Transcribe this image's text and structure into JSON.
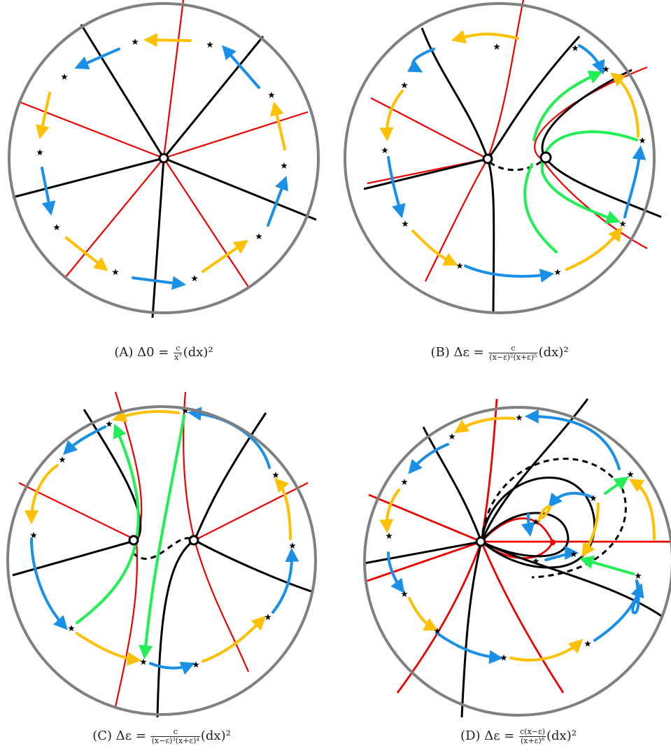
{
  "colors": {
    "boundary": "#808080",
    "black_curve": "#000000",
    "red_curve": "#ee0000",
    "blue_arrow": "#1a8fe8",
    "yellow_arrow": "#ffc000",
    "green_arrow": "#22ee55"
  },
  "panels": [
    {
      "label": "(A)",
      "caption_lhs": "Δ0 =",
      "num": "c",
      "den": "x⁷",
      "tail": "(dx)²"
    },
    {
      "label": "(B)",
      "caption_lhs": "Δε =",
      "num": "c",
      "den": "(x−ε)²(x+ε)⁵",
      "tail": "(dx)²"
    },
    {
      "label": "(C)",
      "caption_lhs": "Δε =",
      "num": "c",
      "den": "(x−ε)³(x+ε)⁴",
      "tail": "(dx)²"
    },
    {
      "label": "(D)",
      "caption_lhs": "Δε =",
      "num": "c(x−ε)",
      "den": "(x+ε)⁸",
      "tail": "(dx)²"
    }
  ]
}
